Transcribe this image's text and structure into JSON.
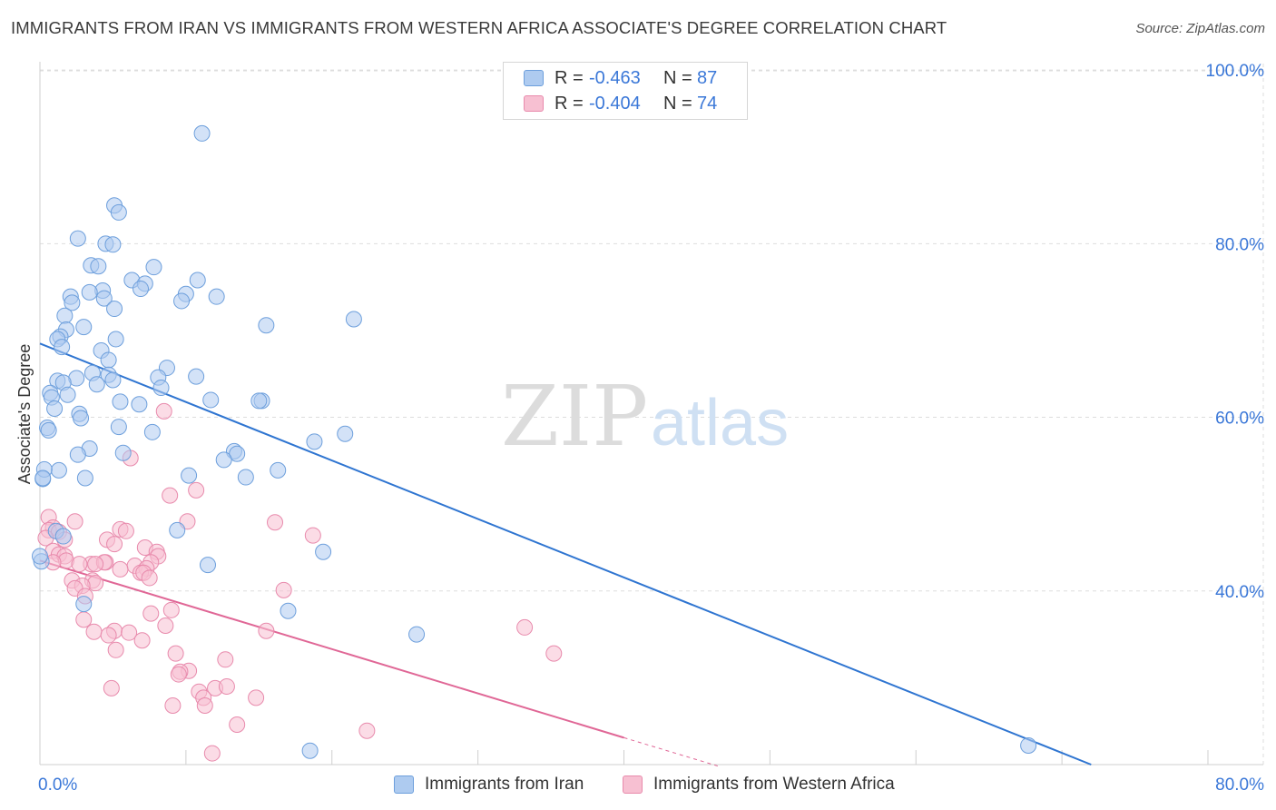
{
  "title": "IMMIGRANTS FROM IRAN VS IMMIGRANTS FROM WESTERN AFRICA ASSOCIATE'S DEGREE CORRELATION CHART",
  "source": "Source: ZipAtlas.com",
  "watermark": {
    "zip": "ZIP",
    "atlas": "atlas"
  },
  "legend": {
    "iran": {
      "r_label": "R =",
      "r_value": "-0.463",
      "n_label": "N =",
      "n_value": "87"
    },
    "wafrica": {
      "r_label": "R =",
      "r_value": "-0.404",
      "n_label": "N =",
      "n_value": "74"
    }
  },
  "colors": {
    "iran_fill": "#aecbf0",
    "iran_stroke": "#6d9fdc",
    "iran_line": "#2f75d1",
    "wafrica_fill": "#f7c0d2",
    "wafrica_stroke": "#e88aac",
    "wafrica_line": "#e06796",
    "accent_text": "#3b78d8"
  },
  "chart_data": {
    "type": "scatter",
    "title": "IMMIGRANTS FROM IRAN VS IMMIGRANTS FROM WESTERN AFRICA ASSOCIATE'S DEGREE CORRELATION CHART",
    "xlabel": "",
    "ylabel": "Associate's Degree",
    "xlim": [
      0,
      80
    ],
    "ylim": [
      20,
      102
    ],
    "x_tick_labels": [
      "0.0%",
      "80.0%"
    ],
    "y_tick_labels": [
      "40.0%",
      "60.0%",
      "80.0%",
      "100.0%"
    ],
    "y_ticks": [
      40,
      60,
      80,
      100
    ],
    "grid": true,
    "legend_position": "top-center",
    "series": [
      {
        "name": "Immigrants from Iran",
        "color": "#6d9fdc",
        "trend": {
          "x": [
            0,
            72
          ],
          "y": [
            68.5,
            20
          ]
        },
        "points": [
          [
            11.1,
            92.7
          ],
          [
            5.1,
            84.4
          ],
          [
            5.4,
            83.6
          ],
          [
            2.6,
            80.6
          ],
          [
            4.5,
            80.0
          ],
          [
            5.0,
            79.9
          ],
          [
            3.5,
            77.5
          ],
          [
            4.0,
            77.4
          ],
          [
            7.8,
            77.3
          ],
          [
            6.3,
            75.8
          ],
          [
            10.8,
            75.8
          ],
          [
            7.2,
            75.4
          ],
          [
            6.9,
            74.8
          ],
          [
            4.3,
            74.6
          ],
          [
            3.4,
            74.4
          ],
          [
            10.0,
            74.2
          ],
          [
            12.1,
            73.9
          ],
          [
            2.1,
            73.9
          ],
          [
            4.4,
            73.7
          ],
          [
            2.2,
            73.2
          ],
          [
            9.7,
            73.4
          ],
          [
            5.1,
            72.5
          ],
          [
            1.7,
            71.7
          ],
          [
            21.5,
            71.3
          ],
          [
            15.5,
            70.6
          ],
          [
            3.0,
            70.4
          ],
          [
            1.8,
            70.1
          ],
          [
            1.4,
            69.3
          ],
          [
            1.2,
            69.0
          ],
          [
            5.2,
            69.0
          ],
          [
            1.5,
            68.1
          ],
          [
            4.2,
            67.7
          ],
          [
            4.7,
            66.6
          ],
          [
            8.7,
            65.7
          ],
          [
            3.6,
            65.1
          ],
          [
            4.7,
            64.9
          ],
          [
            8.1,
            64.6
          ],
          [
            10.7,
            64.7
          ],
          [
            2.5,
            64.5
          ],
          [
            5.0,
            64.3
          ],
          [
            1.2,
            64.2
          ],
          [
            1.6,
            64.0
          ],
          [
            3.9,
            63.8
          ],
          [
            8.3,
            63.4
          ],
          [
            0.7,
            62.8
          ],
          [
            0.8,
            62.3
          ],
          [
            11.7,
            62.0
          ],
          [
            15.2,
            61.9
          ],
          [
            15.0,
            61.9
          ],
          [
            5.5,
            61.8
          ],
          [
            6.8,
            61.5
          ],
          [
            1.0,
            61.0
          ],
          [
            2.7,
            60.4
          ],
          [
            2.8,
            59.9
          ],
          [
            5.4,
            58.9
          ],
          [
            0.5,
            58.8
          ],
          [
            0.6,
            58.5
          ],
          [
            7.7,
            58.3
          ],
          [
            20.9,
            58.1
          ],
          [
            18.8,
            57.2
          ],
          [
            3.4,
            56.4
          ],
          [
            13.3,
            56.1
          ],
          [
            5.7,
            55.9
          ],
          [
            2.6,
            55.7
          ],
          [
            13.5,
            55.8
          ],
          [
            12.6,
            55.1
          ],
          [
            16.3,
            53.9
          ],
          [
            1.3,
            53.9
          ],
          [
            10.2,
            53.3
          ],
          [
            3.1,
            53.0
          ],
          [
            14.1,
            53.1
          ],
          [
            0.2,
            52.9
          ],
          [
            9.4,
            47.0
          ],
          [
            1.1,
            46.9
          ],
          [
            1.6,
            46.3
          ],
          [
            19.4,
            44.5
          ],
          [
            11.5,
            43.0
          ],
          [
            0.1,
            43.4
          ],
          [
            3.0,
            38.5
          ],
          [
            17.0,
            37.7
          ],
          [
            25.8,
            35.0
          ],
          [
            18.5,
            21.6
          ],
          [
            67.7,
            22.2
          ],
          [
            0.3,
            54.0
          ],
          [
            0.2,
            53.0
          ],
          [
            0.0,
            44.0
          ],
          [
            1.9,
            62.6
          ]
        ]
      },
      {
        "name": "Immigrants from Western Africa",
        "color": "#e88aac",
        "trend": {
          "x": [
            0,
            40
          ],
          "y": [
            43.5,
            23.1
          ]
        },
        "trend_dashed": {
          "x": [
            40,
            46.5
          ],
          "y": [
            23.1,
            19.8
          ]
        },
        "points": [
          [
            8.5,
            60.7
          ],
          [
            6.2,
            55.3
          ],
          [
            8.9,
            51.0
          ],
          [
            10.7,
            51.6
          ],
          [
            0.6,
            48.5
          ],
          [
            2.4,
            48.0
          ],
          [
            10.1,
            48.0
          ],
          [
            16.1,
            47.9
          ],
          [
            0.9,
            47.3
          ],
          [
            0.6,
            47.0
          ],
          [
            1.3,
            46.8
          ],
          [
            5.5,
            47.1
          ],
          [
            5.9,
            46.9
          ],
          [
            18.7,
            46.4
          ],
          [
            0.4,
            46.1
          ],
          [
            4.6,
            45.9
          ],
          [
            1.7,
            45.9
          ],
          [
            5.1,
            45.4
          ],
          [
            7.2,
            45.0
          ],
          [
            0.9,
            44.6
          ],
          [
            8.0,
            44.5
          ],
          [
            1.3,
            44.2
          ],
          [
            1.7,
            44.0
          ],
          [
            8.1,
            44.0
          ],
          [
            1.8,
            43.5
          ],
          [
            0.9,
            43.3
          ],
          [
            7.6,
            43.3
          ],
          [
            3.5,
            43.1
          ],
          [
            4.5,
            43.3
          ],
          [
            4.4,
            43.3
          ],
          [
            3.8,
            43.1
          ],
          [
            2.7,
            43.1
          ],
          [
            6.5,
            42.9
          ],
          [
            7.3,
            42.6
          ],
          [
            5.5,
            42.5
          ],
          [
            6.9,
            42.1
          ],
          [
            7.1,
            42.1
          ],
          [
            7.5,
            41.5
          ],
          [
            3.6,
            41.2
          ],
          [
            2.2,
            41.2
          ],
          [
            3.8,
            40.9
          ],
          [
            2.9,
            40.6
          ],
          [
            2.4,
            40.3
          ],
          [
            16.7,
            40.1
          ],
          [
            3.1,
            39.4
          ],
          [
            9.0,
            37.8
          ],
          [
            7.6,
            37.4
          ],
          [
            3.0,
            36.7
          ],
          [
            8.6,
            36.0
          ],
          [
            33.2,
            35.8
          ],
          [
            15.5,
            35.4
          ],
          [
            5.1,
            35.4
          ],
          [
            3.7,
            35.3
          ],
          [
            6.1,
            35.2
          ],
          [
            4.7,
            34.9
          ],
          [
            7.0,
            34.3
          ],
          [
            5.2,
            33.2
          ],
          [
            9.3,
            32.8
          ],
          [
            35.2,
            32.8
          ],
          [
            12.7,
            32.1
          ],
          [
            10.2,
            30.8
          ],
          [
            9.6,
            30.7
          ],
          [
            9.5,
            30.4
          ],
          [
            4.9,
            28.8
          ],
          [
            12.0,
            28.8
          ],
          [
            12.8,
            29.0
          ],
          [
            10.9,
            28.4
          ],
          [
            11.2,
            27.7
          ],
          [
            14.8,
            27.7
          ],
          [
            11.3,
            26.8
          ],
          [
            9.1,
            26.8
          ],
          [
            13.5,
            24.6
          ],
          [
            22.4,
            23.9
          ],
          [
            11.8,
            21.3
          ]
        ]
      }
    ]
  },
  "bottom_legend": {
    "iran": "Immigrants from Iran",
    "wafrica": "Immigrants from Western Africa"
  }
}
